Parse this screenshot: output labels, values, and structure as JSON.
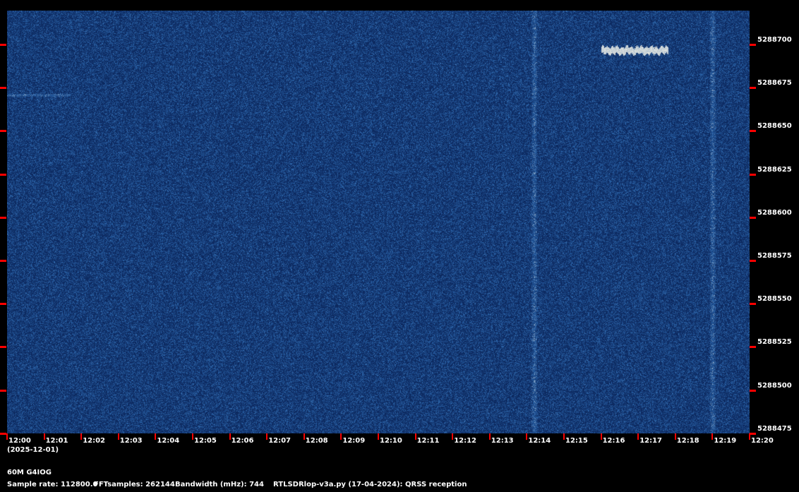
{
  "chart_data": {
    "type": "heatmap",
    "title": "60M G4IOG",
    "x_tick_labels": [
      "12:00",
      "12:01",
      "12:02",
      "12:03",
      "12:04",
      "12:05",
      "12:06",
      "12:07",
      "12:08",
      "12:09",
      "12:10",
      "12:11",
      "12:12",
      "12:13",
      "12:14",
      "12:15",
      "12:16",
      "12:17",
      "12:18",
      "12:19",
      "12:20"
    ],
    "date_label": "(2025-12-01)",
    "y_tick_labels": [
      "5288700",
      "5288675",
      "5288650",
      "5288625",
      "5288600",
      "5288575",
      "5288550",
      "5288525",
      "5288500",
      "5288475"
    ],
    "ylim": [
      5288475,
      5288720
    ],
    "xlim": [
      "12:00",
      "12:20"
    ],
    "colormap": {
      "background": "#0c2a5e",
      "mid": "#2a5aa0",
      "high": "#e8e8e0"
    },
    "tick_color": "#ff0000",
    "features": [
      {
        "kind": "qrss-signal",
        "time_start": "12:16",
        "time_end": "12:17.8",
        "frequency": 5288697
      },
      {
        "kind": "faint-trace",
        "time_start": "12:00",
        "time_end": "12:01.7",
        "frequency": 5288671
      },
      {
        "kind": "broadband-interference",
        "time": "12:14.2"
      },
      {
        "kind": "broadband-interference",
        "time": "12:19"
      }
    ]
  },
  "footer": {
    "station": "60M G4IOG",
    "sample_rate": "Sample rate: 112800.0",
    "fft_samples": "FFTsamples: 262144",
    "bandwidth": "Bandwidth (mHz): 744",
    "software": "RTLSDRlop-v3a.py (17-04-2024): QRSS reception"
  }
}
